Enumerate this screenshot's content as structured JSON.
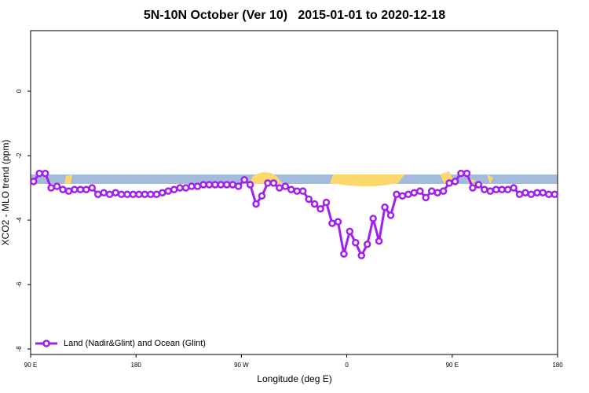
{
  "chart_data": {
    "type": "line",
    "title": "5N-10N October (Ver 10)   2015-01-01 to 2020-12-18",
    "x_label": "Longitude (deg E)",
    "y_label": "XCO2 - MLO trend (ppm)",
    "xlim": [
      90,
      540
    ],
    "ylim": [
      -8.17,
      1.88
    ],
    "xticks": [
      {
        "value": 90,
        "label": "90 E"
      },
      {
        "value": 180,
        "label": "180"
      },
      {
        "value": 270,
        "label": "90 W"
      },
      {
        "value": 360,
        "label": "0"
      },
      {
        "value": 450,
        "label": "90 E"
      },
      {
        "value": 540,
        "label": "180"
      }
    ],
    "yticks": [
      0,
      -2,
      -4,
      -6,
      -8
    ],
    "legend": "bottom-left",
    "x": [
      92.5,
      97.5,
      102.5,
      107.5,
      112.5,
      117.5,
      122.5,
      127.5,
      132.5,
      137.5,
      142.5,
      147.5,
      152.5,
      157.5,
      162.5,
      167.5,
      172.5,
      177.5,
      182.5,
      187.5,
      192.5,
      197.5,
      202.5,
      207.5,
      212.5,
      217.5,
      222.5,
      227.5,
      232.5,
      237.5,
      242.5,
      247.5,
      252.5,
      257.5,
      262.5,
      267.5,
      272.5,
      277.5,
      282.5,
      287.5,
      292.5,
      297.5,
      302.5,
      307.5,
      312.5,
      317.5,
      322.5,
      327.5,
      332.5,
      337.5,
      342.5,
      347.5,
      352.5,
      357.5,
      362.5,
      367.5,
      372.5,
      377.5,
      382.5,
      387.5,
      392.5,
      397.5,
      402.5,
      407.5,
      412.5,
      417.5,
      422.5,
      427.5,
      432.5,
      437.5,
      442.5,
      447.5,
      452.5,
      457.5,
      462.5,
      467.5,
      472.5,
      477.5,
      482.5,
      487.5,
      492.5,
      497.5,
      502.5,
      507.5,
      512.5,
      517.5,
      522.5,
      527.5,
      532.5,
      537.5
    ],
    "series": [
      {
        "name": "Land (Nadir&Glint) and Ocean (Glint)",
        "color": "#a020f0",
        "values": [
          -2.8,
          -2.55,
          -2.55,
          -3.0,
          -2.95,
          -3.05,
          -3.1,
          -3.05,
          -3.05,
          -3.05,
          -3.0,
          -3.2,
          -3.15,
          -3.2,
          -3.15,
          -3.2,
          -3.2,
          -3.2,
          -3.2,
          -3.2,
          -3.2,
          -3.2,
          -3.15,
          -3.1,
          -3.05,
          -3.0,
          -3.0,
          -2.95,
          -2.95,
          -2.9,
          -2.9,
          -2.9,
          -2.9,
          -2.9,
          -2.9,
          -2.95,
          -2.75,
          -2.9,
          -3.5,
          -3.25,
          -2.85,
          -2.85,
          -3.0,
          -2.95,
          -3.05,
          -3.1,
          -3.1,
          -3.35,
          -3.5,
          -3.65,
          -3.45,
          -4.1,
          -4.05,
          -5.05,
          -4.35,
          -4.7,
          -5.1,
          -4.75,
          -3.95,
          -4.65,
          -3.6,
          -3.85,
          -3.2,
          -3.25,
          -3.2,
          -3.15,
          -3.1,
          -3.3,
          -3.1,
          -3.15,
          -3.1,
          -2.85,
          -2.8,
          -2.55,
          -2.55,
          -3.0,
          -2.9,
          -3.05,
          -3.1,
          -3.05,
          -3.05,
          -3.05,
          -3.0,
          -3.2,
          -3.15,
          -3.2,
          -3.15,
          -3.15,
          -3.2,
          -3.2
        ]
      }
    ]
  }
}
